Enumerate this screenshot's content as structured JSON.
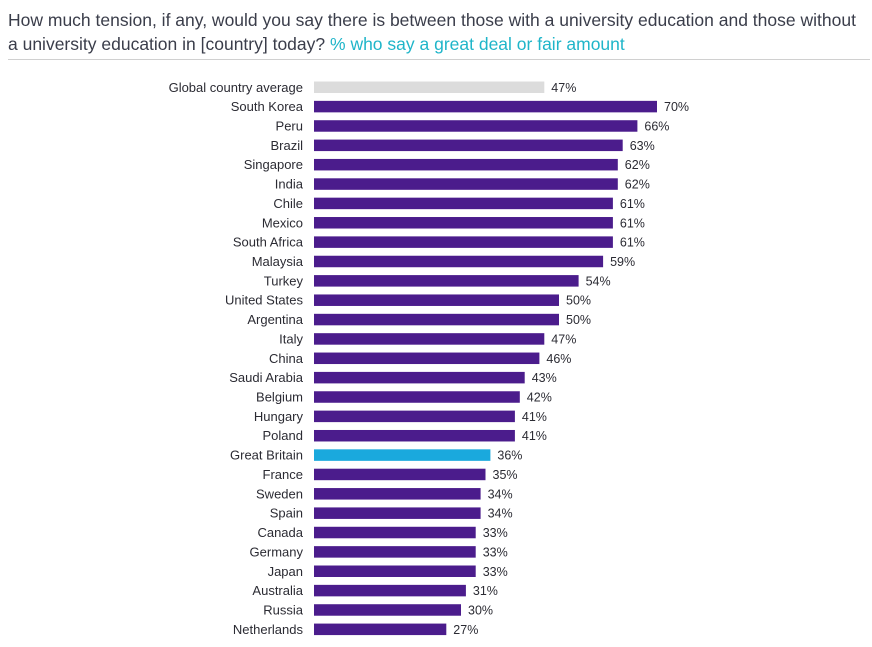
{
  "title": {
    "main": "How much tension, if any, would you say there is between those with a university education and those without a university education in [country] today?",
    "subtitle": "% who say a great deal or fair amount"
  },
  "colors": {
    "default_bar": "#4b1c8c",
    "average_bar": "#dcdcdc",
    "highlight_bar": "#1aa9dd",
    "highlight_label": "#1fb5c9",
    "subtitle": "#1fb5c9"
  },
  "chart_data": {
    "type": "bar",
    "orientation": "horizontal",
    "title": "How much tension, if any, would you say there is between those with a university education and those without a university education in [country] today?",
    "subtitle": "% who say a great deal or fair amount",
    "value_suffix": "%",
    "xlim": [
      0,
      70
    ],
    "categories": [
      "Global country average",
      "South Korea",
      "Peru",
      "Brazil",
      "Singapore",
      "India",
      "Chile",
      "Mexico",
      "South Africa",
      "Malaysia",
      "Turkey",
      "United States",
      "Argentina",
      "Italy",
      "China",
      "Saudi Arabia",
      "Belgium",
      "Hungary",
      "Poland",
      "Great Britain",
      "France",
      "Sweden",
      "Spain",
      "Canada",
      "Germany",
      "Japan",
      "Australia",
      "Russia",
      "Netherlands"
    ],
    "values": [
      47,
      70,
      66,
      63,
      62,
      62,
      61,
      61,
      61,
      59,
      54,
      50,
      50,
      47,
      46,
      43,
      42,
      41,
      41,
      36,
      35,
      34,
      34,
      33,
      33,
      33,
      31,
      30,
      27
    ],
    "bar_roles": [
      "average",
      "default",
      "default",
      "default",
      "default",
      "default",
      "default",
      "default",
      "default",
      "default",
      "default",
      "default",
      "default",
      "default",
      "default",
      "default",
      "default",
      "default",
      "default",
      "highlight",
      "default",
      "default",
      "default",
      "default",
      "default",
      "default",
      "default",
      "default",
      "default"
    ]
  }
}
